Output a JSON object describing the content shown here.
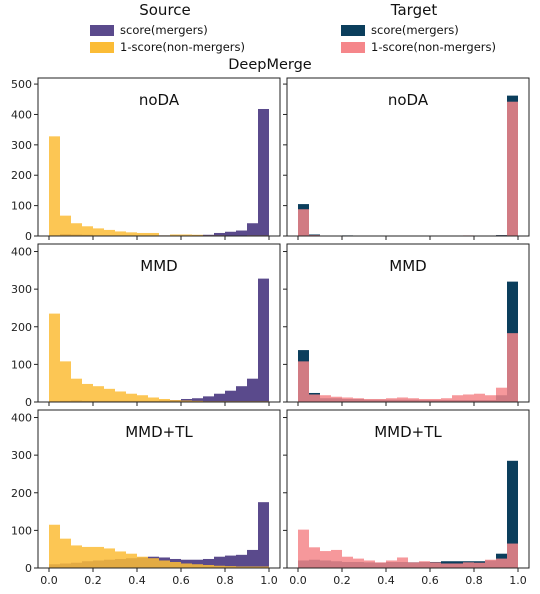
{
  "source_title": "Source",
  "target_title": "Target",
  "suptitle": "DeepMerge",
  "legend_source": [
    {
      "label": "score(mergers)",
      "color": "#5a4a8c"
    },
    {
      "label": "1-score(non-mergers)",
      "color": "#fbbc36"
    }
  ],
  "legend_target": [
    {
      "label": "score(mergers)",
      "color": "#0b3e5c"
    },
    {
      "label": "1-score(non-mergers)",
      "color": "#f5868a"
    }
  ],
  "chart_data": [
    {
      "type": "bar",
      "title": "noDA",
      "column": "Source",
      "x": [
        0.025,
        0.075,
        0.125,
        0.175,
        0.225,
        0.275,
        0.325,
        0.375,
        0.425,
        0.475,
        0.525,
        0.575,
        0.625,
        0.675,
        0.725,
        0.775,
        0.825,
        0.875,
        0.925,
        0.975
      ],
      "xlim": [
        -0.05,
        1.05
      ],
      "ylim": [
        0,
        520
      ],
      "xticks": [
        "0.0",
        "0.2",
        "0.4",
        "0.6",
        "0.8",
        "1.0"
      ],
      "yticks": [
        0,
        100,
        200,
        300,
        400,
        500
      ],
      "series": [
        {
          "name": "score(mergers)",
          "color": "#5a4a8c",
          "values": [
            2,
            6,
            5,
            4,
            2,
            2,
            2,
            2,
            1,
            1,
            2,
            2,
            2,
            3,
            4,
            10,
            14,
            18,
            42,
            418
          ]
        },
        {
          "name": "1-score(non-mergers)",
          "color": "#fbbc36",
          "values": [
            328,
            67,
            42,
            32,
            25,
            20,
            15,
            12,
            10,
            10,
            2,
            5,
            5,
            4,
            2,
            2,
            1,
            1,
            2,
            2
          ]
        }
      ]
    },
    {
      "type": "bar",
      "title": "noDA",
      "column": "Target",
      "x": [
        0.025,
        0.075,
        0.125,
        0.175,
        0.225,
        0.275,
        0.325,
        0.375,
        0.425,
        0.475,
        0.525,
        0.575,
        0.625,
        0.675,
        0.725,
        0.775,
        0.825,
        0.875,
        0.925,
        0.975
      ],
      "xlim": [
        -0.05,
        1.05
      ],
      "ylim": [
        0,
        520
      ],
      "xticks": [
        "0.0",
        "0.2",
        "0.4",
        "0.6",
        "0.8",
        "1.0"
      ],
      "yticks": [
        0,
        100,
        200,
        300,
        400,
        500
      ],
      "series": [
        {
          "name": "score(mergers)",
          "color": "#0b3e5c",
          "values": [
            105,
            5,
            0,
            0,
            2,
            0,
            0,
            0,
            0,
            0,
            0,
            0,
            0,
            0,
            0,
            0,
            0,
            0,
            3,
            462
          ]
        },
        {
          "name": "1-score(non-mergers)",
          "color": "#f5868a",
          "values": [
            88,
            3,
            0,
            0,
            0,
            0,
            0,
            0,
            0,
            0,
            0,
            0,
            0,
            0,
            0,
            2,
            0,
            0,
            2,
            442
          ]
        }
      ]
    },
    {
      "type": "bar",
      "title": "MMD",
      "column": "Source",
      "x": [
        0.025,
        0.075,
        0.125,
        0.175,
        0.225,
        0.275,
        0.325,
        0.375,
        0.425,
        0.475,
        0.525,
        0.575,
        0.625,
        0.675,
        0.725,
        0.775,
        0.825,
        0.875,
        0.925,
        0.975
      ],
      "xlim": [
        -0.05,
        1.05
      ],
      "ylim": [
        0,
        420
      ],
      "xticks": [
        "0.0",
        "0.2",
        "0.4",
        "0.6",
        "0.8",
        "1.0"
      ],
      "yticks": [
        0,
        100,
        200,
        300,
        400
      ],
      "series": [
        {
          "name": "score(mergers)",
          "color": "#5a4a8c",
          "values": [
            2,
            3,
            4,
            3,
            3,
            3,
            3,
            3,
            3,
            3,
            4,
            5,
            8,
            10,
            15,
            22,
            30,
            42,
            62,
            328
          ]
        },
        {
          "name": "1-score(non-mergers)",
          "color": "#fbbc36",
          "values": [
            235,
            108,
            62,
            48,
            42,
            35,
            28,
            22,
            18,
            12,
            8,
            5,
            4,
            3,
            2,
            2,
            2,
            2,
            2,
            2
          ]
        }
      ]
    },
    {
      "type": "bar",
      "title": "MMD",
      "column": "Target",
      "x": [
        0.025,
        0.075,
        0.125,
        0.175,
        0.225,
        0.275,
        0.325,
        0.375,
        0.425,
        0.475,
        0.525,
        0.575,
        0.625,
        0.675,
        0.725,
        0.775,
        0.825,
        0.875,
        0.925,
        0.975
      ],
      "xlim": [
        -0.05,
        1.05
      ],
      "ylim": [
        0,
        420
      ],
      "xticks": [
        "0.0",
        "0.2",
        "0.4",
        "0.6",
        "0.8",
        "1.0"
      ],
      "yticks": [
        0,
        100,
        200,
        300,
        400
      ],
      "series": [
        {
          "name": "score(mergers)",
          "color": "#0b3e5c",
          "values": [
            138,
            24,
            10,
            10,
            8,
            8,
            6,
            6,
            6,
            6,
            6,
            5,
            5,
            5,
            5,
            5,
            5,
            5,
            18,
            320
          ]
        },
        {
          "name": "1-score(non-mergers)",
          "color": "#f5868a",
          "values": [
            108,
            20,
            18,
            14,
            12,
            10,
            8,
            8,
            10,
            12,
            10,
            8,
            8,
            10,
            18,
            20,
            22,
            18,
            38,
            183
          ]
        }
      ]
    },
    {
      "type": "bar",
      "title": "MMD+TL",
      "column": "Source",
      "x": [
        0.025,
        0.075,
        0.125,
        0.175,
        0.225,
        0.275,
        0.325,
        0.375,
        0.425,
        0.475,
        0.525,
        0.575,
        0.625,
        0.675,
        0.725,
        0.775,
        0.825,
        0.875,
        0.925,
        0.975
      ],
      "xlim": [
        -0.05,
        1.05
      ],
      "ylim": [
        0,
        420
      ],
      "xticks": [
        "0.0",
        "0.2",
        "0.4",
        "0.6",
        "0.8",
        "1.0"
      ],
      "yticks": [
        0,
        100,
        200,
        300,
        400
      ],
      "series": [
        {
          "name": "score(mergers)",
          "color": "#5a4a8c",
          "values": [
            10,
            12,
            14,
            18,
            20,
            22,
            24,
            26,
            28,
            30,
            28,
            24,
            22,
            22,
            24,
            30,
            33,
            35,
            48,
            175
          ]
        },
        {
          "name": "1-score(non-mergers)",
          "color": "#fbbc36",
          "values": [
            115,
            78,
            60,
            56,
            56,
            52,
            44,
            38,
            30,
            26,
            20,
            16,
            12,
            10,
            8,
            6,
            5,
            4,
            4,
            4
          ]
        }
      ]
    },
    {
      "type": "bar",
      "title": "MMD+TL",
      "column": "Target",
      "x": [
        0.025,
        0.075,
        0.125,
        0.175,
        0.225,
        0.275,
        0.325,
        0.375,
        0.425,
        0.475,
        0.525,
        0.575,
        0.625,
        0.675,
        0.725,
        0.775,
        0.825,
        0.875,
        0.925,
        0.975
      ],
      "xlim": [
        -0.05,
        1.05
      ],
      "ylim": [
        0,
        420
      ],
      "xticks": [
        "0.0",
        "0.2",
        "0.4",
        "0.6",
        "0.8",
        "1.0"
      ],
      "yticks": [
        0,
        100,
        200,
        300,
        400
      ],
      "series": [
        {
          "name": "score(mergers)",
          "color": "#0b3e5c",
          "values": [
            20,
            22,
            20,
            18,
            16,
            16,
            15,
            14,
            16,
            16,
            15,
            16,
            16,
            18,
            18,
            18,
            18,
            20,
            38,
            285
          ]
        },
        {
          "name": "1-score(non-mergers)",
          "color": "#f5868a",
          "values": [
            102,
            55,
            45,
            48,
            30,
            25,
            20,
            15,
            20,
            28,
            15,
            18,
            15,
            12,
            12,
            15,
            14,
            22,
            25,
            65
          ]
        }
      ]
    }
  ]
}
